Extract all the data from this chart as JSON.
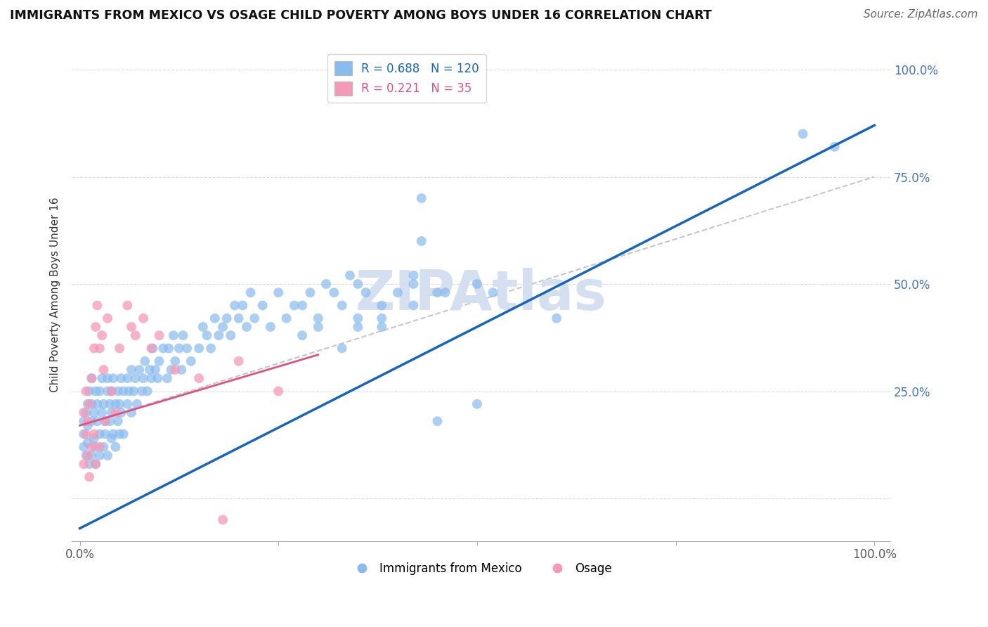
{
  "title": "IMMIGRANTS FROM MEXICO VS OSAGE CHILD POVERTY AMONG BOYS UNDER 16 CORRELATION CHART",
  "source": "Source: ZipAtlas.com",
  "ylabel": "Child Poverty Among Boys Under 16",
  "legend_label1": "Immigrants from Mexico",
  "legend_label2": "Osage",
  "R1": 0.688,
  "N1": 120,
  "R2": 0.221,
  "N2": 35,
  "blue_color": "#88bbee",
  "pink_color": "#f599b8",
  "blue_line_color": "#1565c0",
  "pink_line_color": "#e05080",
  "gray_line_color": "#c0c0c0",
  "watermark": "ZIPAtlas",
  "watermark_color": "#d4dff0",
  "background_color": "#ffffff"
}
